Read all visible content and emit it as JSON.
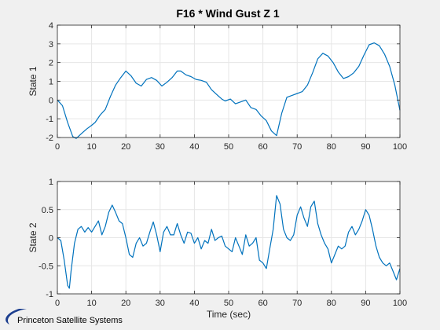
{
  "title": "F16 * Wind Gust Z 1",
  "logo": {
    "text": "Princeton Satellite Systems"
  },
  "colors": {
    "line": "#0072bd",
    "grid": "#e6e6e6",
    "axes_bg": "#ffffff",
    "figure_bg": "#f0f0f0",
    "axis": "#262626"
  },
  "chart_data": [
    {
      "type": "line",
      "title": "F16 * Wind Gust Z 1",
      "xlabel": "",
      "ylabel": "State 1",
      "xlim": [
        0,
        100
      ],
      "ylim": [
        -2,
        4
      ],
      "xticks": [
        0,
        10,
        20,
        30,
        40,
        50,
        60,
        70,
        80,
        90,
        100
      ],
      "yticks": [
        -2,
        -1,
        0,
        1,
        2,
        3,
        4
      ],
      "grid": true,
      "series": [
        {
          "x": [
            0,
            1.5,
            3,
            4.5,
            5.5,
            7,
            8.5,
            10,
            11,
            12.5,
            14,
            15.5,
            17,
            18.5,
            20,
            21.5,
            23,
            24.5,
            26,
            27.5,
            29,
            30.5,
            32,
            33.5,
            35,
            36,
            37.5,
            39,
            40.5,
            42,
            43.5,
            45,
            46.5,
            48,
            49,
            50.5,
            52,
            53.5,
            55,
            56.5,
            58,
            59.5,
            61,
            62.5,
            64,
            65.5,
            67,
            68.5,
            70,
            71.5,
            73,
            74.5,
            76,
            77.5,
            79,
            80.5,
            82,
            83.5,
            85,
            86.5,
            88,
            89.5,
            91,
            92.5,
            94,
            95.5,
            97,
            98.5,
            100
          ],
          "y": [
            0,
            -0.3,
            -1.2,
            -1.95,
            -2.05,
            -1.8,
            -1.55,
            -1.35,
            -1.2,
            -0.8,
            -0.5,
            0.2,
            0.8,
            1.2,
            1.55,
            1.3,
            0.9,
            0.75,
            1.1,
            1.2,
            1.05,
            0.75,
            0.95,
            1.2,
            1.55,
            1.55,
            1.35,
            1.25,
            1.1,
            1.05,
            0.95,
            0.55,
            0.3,
            0.05,
            -0.05,
            0.05,
            -0.2,
            -0.1,
            0.0,
            -0.4,
            -0.5,
            -0.85,
            -1.1,
            -1.65,
            -1.9,
            -0.7,
            0.15,
            0.25,
            0.35,
            0.45,
            0.8,
            1.45,
            2.2,
            2.5,
            2.35,
            2.0,
            1.5,
            1.15,
            1.25,
            1.45,
            1.8,
            2.4,
            2.95,
            3.05,
            2.9,
            2.45,
            1.8,
            0.8,
            -0.55
          ]
        }
      ]
    },
    {
      "type": "line",
      "xlabel": "Time (sec)",
      "ylabel": "State 2",
      "xlim": [
        0,
        100
      ],
      "ylim": [
        -1,
        1
      ],
      "xticks": [
        0,
        10,
        20,
        30,
        40,
        50,
        60,
        70,
        80,
        90,
        100
      ],
      "yticks": [
        -1,
        -0.5,
        0,
        0.5,
        1
      ],
      "grid": true,
      "series": [
        {
          "x": [
            0,
            1,
            2,
            3,
            3.5,
            4,
            5,
            6,
            7,
            8,
            9,
            10,
            11,
            12,
            13,
            14,
            15,
            16,
            17,
            18,
            19,
            20,
            21,
            22,
            23,
            24,
            25,
            26,
            27,
            28,
            29,
            30,
            31,
            32,
            33,
            34,
            35,
            36,
            37,
            38,
            39,
            40,
            41,
            42,
            43,
            44,
            45,
            46,
            47,
            48,
            49,
            50,
            51,
            52,
            53,
            54,
            55,
            56,
            57,
            58,
            59,
            60,
            61,
            62,
            63,
            64,
            65,
            66,
            67,
            68,
            69,
            70,
            71,
            72,
            73,
            74,
            75,
            76,
            77,
            78,
            79,
            80,
            81,
            82,
            83,
            84,
            85,
            86,
            87,
            88,
            89,
            90,
            91,
            92,
            93,
            94,
            95,
            96,
            97,
            98,
            99,
            100
          ],
          "y": [
            0,
            -0.05,
            -0.4,
            -0.85,
            -0.9,
            -0.6,
            -0.1,
            0.15,
            0.2,
            0.1,
            0.18,
            0.1,
            0.2,
            0.3,
            0.05,
            0.2,
            0.45,
            0.58,
            0.45,
            0.3,
            0.25,
            0.0,
            -0.3,
            -0.35,
            -0.1,
            0.0,
            -0.15,
            -0.1,
            0.1,
            0.28,
            0.05,
            -0.25,
            0.1,
            0.2,
            0.05,
            0.05,
            0.25,
            0.05,
            -0.1,
            0.1,
            0.08,
            -0.1,
            0.0,
            -0.2,
            -0.05,
            -0.1,
            0.15,
            -0.05,
            0.0,
            0.03,
            -0.15,
            -0.2,
            -0.25,
            0.0,
            -0.15,
            -0.3,
            0.05,
            -0.15,
            -0.1,
            0.0,
            -0.4,
            -0.45,
            -0.55,
            -0.2,
            0.15,
            0.75,
            0.6,
            0.15,
            0.0,
            -0.05,
            0.05,
            0.4,
            0.55,
            0.35,
            0.2,
            0.55,
            0.65,
            0.25,
            0.05,
            -0.1,
            -0.2,
            -0.45,
            -0.3,
            -0.15,
            -0.2,
            -0.15,
            0.1,
            0.2,
            0.05,
            0.15,
            0.3,
            0.5,
            0.4,
            0.15,
            -0.15,
            -0.35,
            -0.45,
            -0.5,
            -0.45,
            -0.6,
            -0.75,
            -0.55
          ]
        }
      ]
    }
  ]
}
